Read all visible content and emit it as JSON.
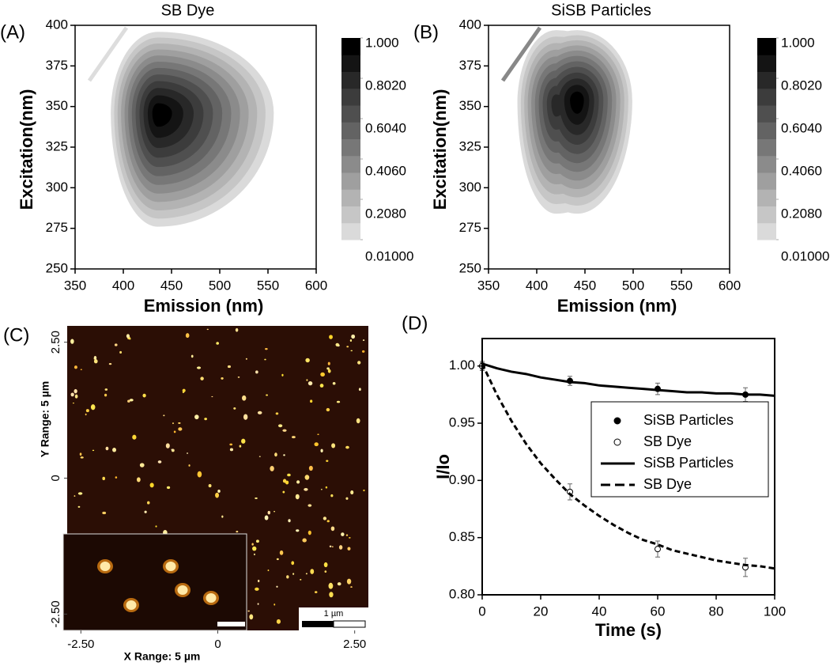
{
  "chart_data": [
    {
      "type": "contour",
      "panel_label": "(A)",
      "title": "SB Dye",
      "x_label": "Emission (nm)",
      "y_label": "Excitation(nm)",
      "xlim": [
        350,
        600
      ],
      "ylim": [
        250,
        400
      ],
      "xticks": [
        350,
        400,
        450,
        500,
        550,
        600
      ],
      "yticks": [
        250,
        275,
        300,
        325,
        350,
        375,
        400
      ],
      "peaks": [
        {
          "x": 436,
          "y": 346,
          "value": 1
        }
      ],
      "extent": {
        "x": [
          387,
          556
        ],
        "y": [
          276,
          396
        ]
      },
      "colorbar": {
        "lim": [
          0.01,
          1
        ],
        "ticks": [
          {
            "value": 1,
            "label": "1.000"
          },
          {
            "value": 0.802,
            "label": "0.8020"
          },
          {
            "value": 0.604,
            "label": "0.6040"
          },
          {
            "value": 0.406,
            "label": "0.4060"
          },
          {
            "value": 0.208,
            "label": "0.2080"
          },
          {
            "value": 0.01,
            "label": "0.01000"
          }
        ]
      }
    },
    {
      "type": "contour",
      "panel_label": "(B)",
      "title": "SiSB Particles",
      "x_label": "Emission (nm)",
      "y_label": "Excitation(nm)",
      "xlim": [
        350,
        600
      ],
      "ylim": [
        250,
        400
      ],
      "xticks": [
        350,
        400,
        450,
        500,
        550,
        600
      ],
      "yticks": [
        250,
        275,
        300,
        325,
        350,
        375,
        400
      ],
      "peaks": [
        {
          "x": 442,
          "y": 354,
          "value": 1
        },
        {
          "x": 420,
          "y": 352,
          "value": 0.82
        }
      ],
      "extent": {
        "x": [
          380,
          499
        ],
        "y": [
          284,
          397
        ]
      },
      "colorbar": {
        "lim": [
          0.01,
          1
        ],
        "ticks": [
          {
            "value": 1,
            "label": "1.000"
          },
          {
            "value": 0.802,
            "label": "0.8020"
          },
          {
            "value": 0.604,
            "label": "0.6040"
          },
          {
            "value": 0.406,
            "label": "0.4060"
          },
          {
            "value": 0.208,
            "label": "0.2080"
          },
          {
            "value": 0.01,
            "label": "0.01000"
          }
        ]
      }
    },
    {
      "type": "image",
      "panel_label": "(C)",
      "x_label": "X Range: 5 µm",
      "y_label": "Y Range: 5 µm",
      "xlim": [
        -2.75,
        2.75
      ],
      "ylim": [
        -2.8,
        2.8
      ],
      "xticks": [
        {
          "value": -2.5,
          "label": "-2.50"
        },
        0,
        {
          "value": 2.5,
          "label": "2.50"
        }
      ],
      "yticks": [
        {
          "value": -2.5,
          "label": "-2.50"
        },
        0,
        {
          "value": 2.5,
          "label": "2.50"
        }
      ],
      "scale_bar_label": "1 µm"
    },
    {
      "type": "scatter_line",
      "panel_label": "(D)",
      "x_label": "Time (s)",
      "y_label": "I/Io",
      "xlim": [
        0,
        100
      ],
      "ylim": [
        0.8,
        1.024
      ],
      "xticks": [
        0,
        20,
        40,
        60,
        80,
        100
      ],
      "yticks": [
        {
          "value": 0.8,
          "label": "0.80"
        },
        {
          "value": 0.85,
          "label": "0.85"
        },
        {
          "value": 0.9,
          "label": "0.90"
        },
        {
          "value": 0.95,
          "label": "0.95"
        },
        {
          "value": 1,
          "label": "1.00"
        }
      ],
      "legend": "center right",
      "series": [
        {
          "name": "SiSB Particles",
          "kind": "points",
          "marker": "filled",
          "color": "#000000",
          "x": [
            0,
            30,
            60,
            90
          ],
          "values": [
            1.0,
            0.987,
            0.98,
            0.975
          ],
          "errors": [
            0.003,
            0.004,
            0.005,
            0.006
          ]
        },
        {
          "name": "SB Dye",
          "kind": "points",
          "marker": "open",
          "color": "#000000",
          "x": [
            0,
            30,
            60,
            90
          ],
          "values": [
            1.0,
            0.89,
            0.84,
            0.824
          ],
          "errors": [
            0.004,
            0.007,
            0.007,
            0.008
          ]
        },
        {
          "name": "SiSB Particles",
          "kind": "line",
          "dash": "solid",
          "color": "#000000",
          "x": [
            0,
            5,
            10,
            15,
            20,
            25,
            30,
            35,
            40,
            45,
            50,
            55,
            60,
            65,
            70,
            75,
            80,
            85,
            90,
            95,
            100
          ],
          "values": [
            1.002,
            0.998,
            0.995,
            0.993,
            0.99,
            0.988,
            0.986,
            0.985,
            0.983,
            0.982,
            0.981,
            0.98,
            0.979,
            0.978,
            0.977,
            0.977,
            0.976,
            0.976,
            0.975,
            0.975,
            0.974
          ]
        },
        {
          "name": "SB Dye",
          "kind": "line",
          "dash": "dashed",
          "color": "#000000",
          "x": [
            0,
            5,
            10,
            15,
            20,
            25,
            30,
            35,
            40,
            45,
            50,
            55,
            60,
            65,
            70,
            75,
            80,
            85,
            90,
            95,
            100
          ],
          "values": [
            1.002,
            0.975,
            0.952,
            0.932,
            0.915,
            0.901,
            0.888,
            0.878,
            0.869,
            0.861,
            0.854,
            0.848,
            0.844,
            0.839,
            0.836,
            0.833,
            0.83,
            0.828,
            0.826,
            0.825,
            0.823
          ]
        }
      ]
    }
  ]
}
